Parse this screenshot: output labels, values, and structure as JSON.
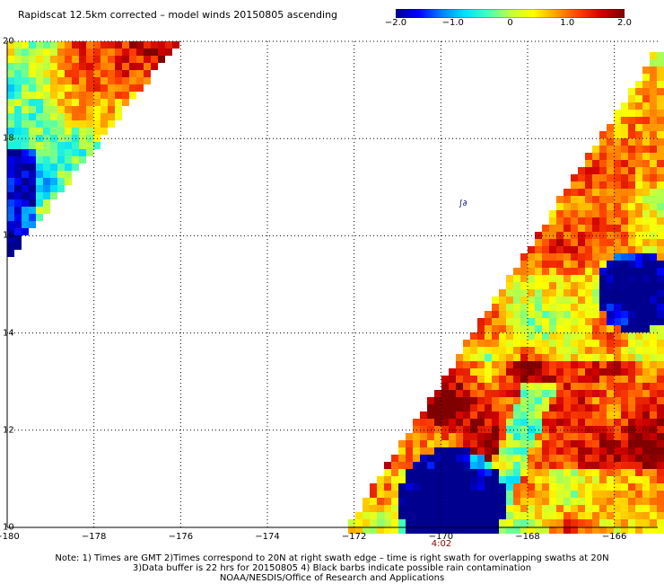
{
  "title": "Rapidscat 12.5km corrected – model winds 20150805 ascending",
  "colorbar": {
    "min": -2.0,
    "max": 2.0,
    "ticks": [
      {
        "value": -2.0,
        "label": "−2.0"
      },
      {
        "value": -1.0,
        "label": "−1.0"
      },
      {
        "value": 0,
        "label": "0"
      },
      {
        "value": 1.0,
        "label": "1.0"
      },
      {
        "value": 2.0,
        "label": "2.0"
      }
    ],
    "colors": [
      "#00008f",
      "#0000ff",
      "#0080ff",
      "#00e0ff",
      "#40ffc0",
      "#c0ff40",
      "#ffff00",
      "#ffa000",
      "#ff4000",
      "#d00000",
      "#800000"
    ]
  },
  "map": {
    "lon_range": [
      -180,
      -165
    ],
    "lat_range": [
      10,
      20
    ],
    "lon_ticks": [
      {
        "value": -180,
        "label": "−180"
      },
      {
        "value": -178,
        "label": "−178"
      },
      {
        "value": -176,
        "label": "−176"
      },
      {
        "value": -174,
        "label": "−174"
      },
      {
        "value": -172,
        "label": "−172"
      },
      {
        "value": -170,
        "label": "−170"
      },
      {
        "value": -168,
        "label": "−168"
      },
      {
        "value": -166,
        "label": "−166"
      }
    ],
    "lat_ticks": [
      {
        "value": 20,
        "label": "20"
      },
      {
        "value": 18,
        "label": "18"
      },
      {
        "value": 16,
        "label": "16"
      },
      {
        "value": 14,
        "label": "14"
      },
      {
        "value": 12,
        "label": "12"
      },
      {
        "value": 10,
        "label": "10"
      }
    ],
    "grid": "dotted",
    "swath_time": "4:02",
    "rain_marker": "∫∂"
  },
  "notes": [
    "Note: 1) Times are GMT 2)Times correspond to 20N at right swath edge – time is right swath for overlapping swaths at 20N",
    "3)Data buffer is 22 hrs for 20150805 4) Black barbs indicate possible rain contamination",
    "NOAA/NESDIS/Office of Research and Applications"
  ]
}
